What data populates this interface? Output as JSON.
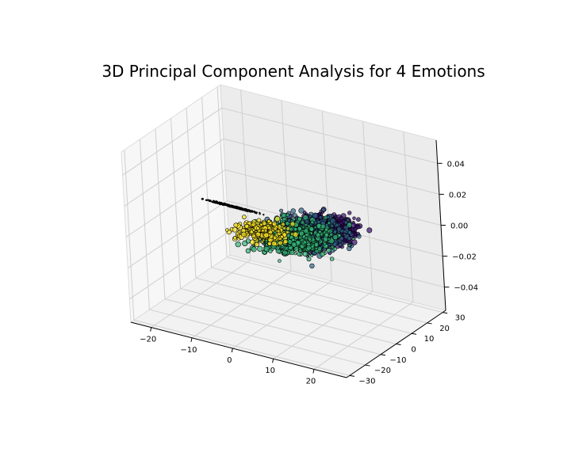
{
  "chart_data": {
    "type": "scatter",
    "projection": "3d",
    "title": "3D Principal Component Analysis for 4 Emotions",
    "xlabel": "",
    "ylabel": "",
    "zlabel": "",
    "x_ticks": [
      "−20",
      "−10",
      "0",
      "10",
      "20"
    ],
    "y_ticks": [
      "−30",
      "−20",
      "−10",
      "0",
      "10",
      "20",
      "30"
    ],
    "z_ticks": [
      "−0.04",
      "−0.02",
      "0.00",
      "0.02",
      "0.04"
    ],
    "xlim": [
      -25,
      28
    ],
    "ylim": [
      -32,
      32
    ],
    "zlim": [
      -0.055,
      0.055
    ],
    "grid": true,
    "colormap": "viridis",
    "point_edge_color": "#000000",
    "clusters": [
      {
        "class_index": 0,
        "color": "#3b0f70",
        "center": [
          8,
          6,
          0.0
        ],
        "spread": [
          5,
          9,
          0.0
        ],
        "approx_points": 900
      },
      {
        "class_index": 1,
        "color": "#31688e",
        "center": [
          6,
          2,
          0.0
        ],
        "spread": [
          6,
          10,
          0.0
        ],
        "approx_points": 700
      },
      {
        "class_index": 2,
        "color": "#35b779",
        "center": [
          5,
          -2,
          0.0
        ],
        "spread": [
          6,
          10,
          0.0
        ],
        "approx_points": 500
      },
      {
        "class_index": 3,
        "color": "#fde725",
        "center": [
          -2,
          -4,
          0.0
        ],
        "spread": [
          4,
          6,
          0.0
        ],
        "approx_points": 250
      },
      {
        "class_index": -1,
        "color": "#000000",
        "label": "tail",
        "center": [
          -14,
          8,
          0.0
        ],
        "spread": [
          4,
          0.4,
          0.0
        ],
        "approx_points": 400
      }
    ]
  }
}
